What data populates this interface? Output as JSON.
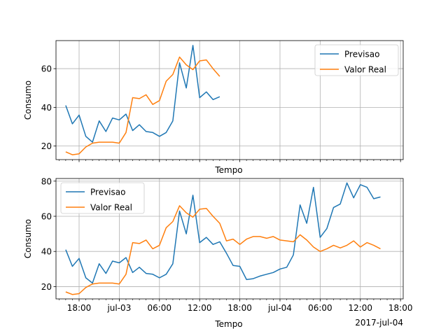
{
  "chart_data": [
    {
      "type": "line",
      "title": "",
      "xlabel": "Tempo",
      "ylabel": "Consumo",
      "x_unit": "hours since 2017-07-02 00:00",
      "xlim": [
        14.55,
        48.4
      ],
      "ylim": [
        13.0,
        74.5
      ],
      "grid": true,
      "legend_position": "upper right",
      "x_tick_values": [
        18,
        24,
        30,
        36,
        42,
        48
      ],
      "x_tick_labels": [
        "",
        "",
        "",
        "",
        "",
        ""
      ],
      "y_ticks": [
        20,
        40,
        60
      ],
      "series": [
        {
          "name": "Previsao",
          "color": "#1f77b4",
          "x": [
            16,
            17,
            18,
            19,
            20,
            21,
            22,
            23,
            24,
            25,
            26,
            27,
            28,
            29,
            30,
            31,
            32,
            33,
            34,
            35,
            36,
            37,
            38,
            39,
            40
          ],
          "values": [
            41,
            31.5,
            36,
            25,
            22,
            33,
            27.5,
            34.5,
            33.5,
            36.5,
            28,
            31,
            27.5,
            27,
            25,
            27,
            33,
            63,
            50,
            72,
            45,
            48,
            44,
            45.5,
            null
          ]
        },
        {
          "name": "Valor Real",
          "color": "#ff7f0e",
          "x": [
            16,
            17,
            18,
            19,
            20,
            21,
            22,
            23,
            24,
            25,
            26,
            27,
            28,
            29,
            30,
            31,
            32,
            33,
            34,
            35,
            36,
            37,
            38,
            39,
            40
          ],
          "values": [
            17,
            15.5,
            16,
            19.5,
            21.5,
            22,
            22,
            22,
            21.5,
            27,
            45,
            44.5,
            46.5,
            41.5,
            43.5,
            53.5,
            57,
            66,
            62,
            59.5,
            64,
            64.5,
            60,
            56,
            null
          ]
        }
      ]
    },
    {
      "type": "line",
      "title": "",
      "xlabel": "Tempo",
      "ylabel": "Consumo",
      "x_unit": "hours since 2017-07-02 00:00",
      "xlim": [
        14.55,
        48.4
      ],
      "ylim": [
        13.0,
        81.5
      ],
      "grid": true,
      "legend_position": "upper left",
      "x_tick_values": [
        18,
        24,
        30,
        36,
        42,
        48
      ],
      "x_tick_labels": [
        "18:00",
        "jul-03",
        "06:00",
        "12:00",
        "18:00",
        "jul-04",
        "06:00",
        "12:00",
        "18:00"
      ],
      "x_ticks_all": [
        18,
        24,
        30,
        36,
        42,
        48,
        54,
        60,
        66
      ],
      "offset_label": "2017-jul-04",
      "y_ticks": [
        20,
        40,
        60,
        80
      ],
      "series": [
        {
          "name": "Previsao",
          "color": "#1f77b4",
          "values": [
            41,
            31.5,
            36,
            25,
            22,
            33,
            27.5,
            34.5,
            33.5,
            36.5,
            28,
            31,
            27.5,
            27,
            25,
            27,
            33,
            63,
            50,
            72,
            45,
            48,
            44,
            45.5,
            39,
            32,
            31.5,
            24,
            24.5,
            26,
            27,
            28,
            30,
            31,
            38,
            66.5,
            56,
            76.5,
            48,
            53,
            65,
            67,
            79,
            70.5,
            78,
            76.5,
            70,
            71
          ]
        },
        {
          "name": "Valor Real",
          "color": "#ff7f0e",
          "values": [
            17,
            15.5,
            16,
            19.5,
            21.5,
            22,
            22,
            22,
            21.5,
            27,
            45,
            44.5,
            46.5,
            41.5,
            43.5,
            53.5,
            57,
            66,
            62,
            59.5,
            64,
            64.5,
            60,
            56,
            46,
            47,
            44,
            47,
            48.5,
            48.5,
            47.5,
            48.5,
            46.5,
            46,
            45.5,
            49.5,
            46.5,
            42.5,
            40,
            41.5,
            43.5,
            42,
            43.5,
            46,
            42.5,
            45,
            43.5,
            41.5
          ]
        }
      ]
    }
  ]
}
